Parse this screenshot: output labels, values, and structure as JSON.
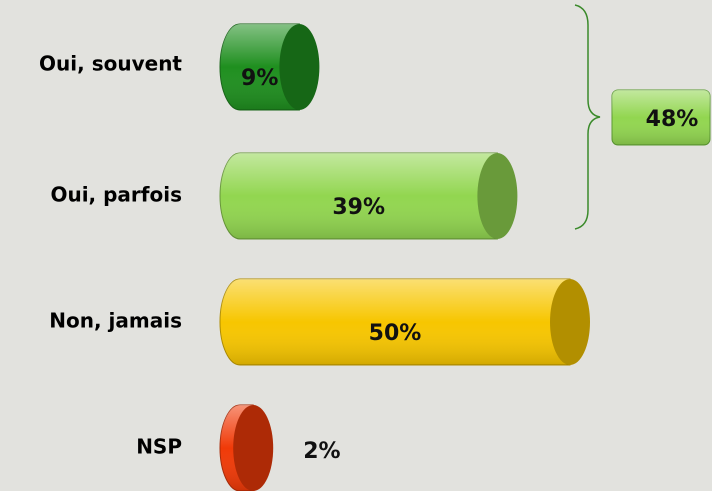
{
  "chart_data": {
    "type": "cylinder-bar",
    "categories": [
      "Oui, souvent",
      "Oui, parfois",
      "Non, jamais",
      "NSP"
    ],
    "values": [
      9,
      39,
      50,
      2
    ],
    "value_labels": [
      "9%",
      "39%",
      "50%",
      "2%"
    ],
    "colors": [
      "#1f8f1f",
      "#92d650",
      "#f7c600",
      "#f03a08"
    ],
    "annotation": {
      "text": "48%",
      "color": "#92d650"
    }
  }
}
